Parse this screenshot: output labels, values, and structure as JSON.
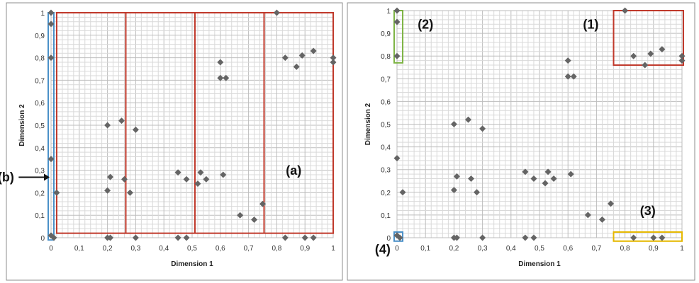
{
  "chart_data": [
    {
      "type": "scatter",
      "xlabel": "Dimension 1",
      "ylabel": "Dimension 2",
      "xlim": [
        0,
        1
      ],
      "ylim": [
        0,
        1
      ],
      "x_ticks": [
        "0",
        "0,1",
        "0,2",
        "0,3",
        "0,4",
        "0,5",
        "0,6",
        "0,7",
        "0,8",
        "0,9",
        "1"
      ],
      "y_ticks": [
        "0",
        "0,1",
        "0,2",
        "0,3",
        "0,4",
        "0,5",
        "0,6",
        "0,7",
        "0,8",
        "0,9",
        "1"
      ],
      "grid": true,
      "points": [
        {
          "x": 0,
          "y": 1
        },
        {
          "x": 0,
          "y": 0.95
        },
        {
          "x": 0,
          "y": 0.8
        },
        {
          "x": 0,
          "y": 0.35
        },
        {
          "x": 0,
          "y": 0.01
        },
        {
          "x": 0.01,
          "y": 0
        },
        {
          "x": 0.02,
          "y": 0.2
        },
        {
          "x": 0.2,
          "y": 0.5
        },
        {
          "x": 0.21,
          "y": 0.27
        },
        {
          "x": 0.2,
          "y": 0.21
        },
        {
          "x": 0.2,
          "y": 0
        },
        {
          "x": 0.21,
          "y": 0
        },
        {
          "x": 0.25,
          "y": 0.52
        },
        {
          "x": 0.26,
          "y": 0.26
        },
        {
          "x": 0.28,
          "y": 0.2
        },
        {
          "x": 0.3,
          "y": 0.48
        },
        {
          "x": 0.3,
          "y": 0
        },
        {
          "x": 0.45,
          "y": 0.29
        },
        {
          "x": 0.48,
          "y": 0.26
        },
        {
          "x": 0.45,
          "y": 0
        },
        {
          "x": 0.48,
          "y": 0
        },
        {
          "x": 0.52,
          "y": 0.24
        },
        {
          "x": 0.53,
          "y": 0.29
        },
        {
          "x": 0.55,
          "y": 0.26
        },
        {
          "x": 0.6,
          "y": 0.78
        },
        {
          "x": 0.6,
          "y": 0.71
        },
        {
          "x": 0.62,
          "y": 0.71
        },
        {
          "x": 0.61,
          "y": 0.28
        },
        {
          "x": 0.67,
          "y": 0.1
        },
        {
          "x": 0.72,
          "y": 0.08
        },
        {
          "x": 0.75,
          "y": 0.15
        },
        {
          "x": 0.8,
          "y": 1
        },
        {
          "x": 0.83,
          "y": 0.8
        },
        {
          "x": 0.87,
          "y": 0.76
        },
        {
          "x": 0.89,
          "y": 0.81
        },
        {
          "x": 0.93,
          "y": 0.83
        },
        {
          "x": 1,
          "y": 0.8
        },
        {
          "x": 1,
          "y": 0.78
        },
        {
          "x": 0.83,
          "y": 0
        },
        {
          "x": 0.9,
          "y": 0
        },
        {
          "x": 0.93,
          "y": 0
        }
      ],
      "regions": [
        {
          "name": "a",
          "color": "#c0392b",
          "x0": 0.02,
          "y0": 0.02,
          "x1": 1,
          "y1": 1
        },
        {
          "name": "a-split-1",
          "color": "#c0392b",
          "x0": 0.265,
          "y0": 0.02,
          "x1": 0.265,
          "y1": 1
        },
        {
          "name": "a-split-2",
          "color": "#c0392b",
          "x0": 0.51,
          "y0": 0.02,
          "x1": 0.51,
          "y1": 1
        },
        {
          "name": "a-split-3",
          "color": "#c0392b",
          "x0": 0.755,
          "y0": 0.02,
          "x1": 0.755,
          "y1": 1
        },
        {
          "name": "b",
          "color": "#4a90c8",
          "x0": -0.01,
          "y0": -0.01,
          "x1": 0.01,
          "y1": 1
        }
      ],
      "annotations": [
        {
          "text": "(a)",
          "x": 0.86,
          "y": 0.28
        },
        {
          "text": "(b)",
          "x": -0.16,
          "y": 0.25,
          "arrow": true
        }
      ]
    },
    {
      "type": "scatter",
      "xlabel": "Dimension 1",
      "ylabel": "Dimension 2",
      "xlim": [
        0,
        1
      ],
      "ylim": [
        0,
        1
      ],
      "x_ticks": [
        "0",
        "0,1",
        "0,2",
        "0,3",
        "0,4",
        "0,5",
        "0,6",
        "0,7",
        "0,8",
        "0,9",
        "1"
      ],
      "y_ticks": [
        "0",
        "0,1",
        "0,2",
        "0,3",
        "0,4",
        "0,5",
        "0,6",
        "0,7",
        "0,8",
        "0,9",
        "1"
      ],
      "grid": true,
      "points": [
        {
          "x": 0,
          "y": 1
        },
        {
          "x": 0,
          "y": 0.95
        },
        {
          "x": 0,
          "y": 0.8
        },
        {
          "x": 0,
          "y": 0.35
        },
        {
          "x": 0,
          "y": 0.01
        },
        {
          "x": 0.01,
          "y": 0
        },
        {
          "x": 0.02,
          "y": 0.2
        },
        {
          "x": 0.2,
          "y": 0.5
        },
        {
          "x": 0.21,
          "y": 0.27
        },
        {
          "x": 0.2,
          "y": 0.21
        },
        {
          "x": 0.2,
          "y": 0
        },
        {
          "x": 0.21,
          "y": 0
        },
        {
          "x": 0.25,
          "y": 0.52
        },
        {
          "x": 0.26,
          "y": 0.26
        },
        {
          "x": 0.28,
          "y": 0.2
        },
        {
          "x": 0.3,
          "y": 0.48
        },
        {
          "x": 0.3,
          "y": 0
        },
        {
          "x": 0.45,
          "y": 0.29
        },
        {
          "x": 0.48,
          "y": 0.26
        },
        {
          "x": 0.45,
          "y": 0
        },
        {
          "x": 0.48,
          "y": 0
        },
        {
          "x": 0.52,
          "y": 0.24
        },
        {
          "x": 0.53,
          "y": 0.29
        },
        {
          "x": 0.55,
          "y": 0.26
        },
        {
          "x": 0.6,
          "y": 0.78
        },
        {
          "x": 0.6,
          "y": 0.71
        },
        {
          "x": 0.62,
          "y": 0.71
        },
        {
          "x": 0.61,
          "y": 0.28
        },
        {
          "x": 0.67,
          "y": 0.1
        },
        {
          "x": 0.72,
          "y": 0.08
        },
        {
          "x": 0.75,
          "y": 0.15
        },
        {
          "x": 0.8,
          "y": 1
        },
        {
          "x": 0.83,
          "y": 0.8
        },
        {
          "x": 0.87,
          "y": 0.76
        },
        {
          "x": 0.89,
          "y": 0.81
        },
        {
          "x": 0.93,
          "y": 0.83
        },
        {
          "x": 1,
          "y": 0.8
        },
        {
          "x": 1,
          "y": 0.78
        },
        {
          "x": 0.83,
          "y": 0
        },
        {
          "x": 0.9,
          "y": 0
        },
        {
          "x": 0.93,
          "y": 0
        }
      ],
      "regions": [
        {
          "name": "1",
          "color": "#c0392b",
          "x0": 0.76,
          "y0": 0.76,
          "x1": 1.005,
          "y1": 1
        },
        {
          "name": "2",
          "color": "#7cb342",
          "x0": -0.01,
          "y0": 0.77,
          "x1": 0.02,
          "y1": 1
        },
        {
          "name": "3",
          "color": "#e6b800",
          "x0": 0.76,
          "y0": -0.015,
          "x1": 1,
          "y1": 0.025
        },
        {
          "name": "4",
          "color": "#4a90c8",
          "x0": -0.01,
          "y0": -0.015,
          "x1": 0.02,
          "y1": 0.025
        }
      ],
      "annotations": [
        {
          "text": "(1)",
          "x": 0.68,
          "y": 0.92
        },
        {
          "text": "(2)",
          "x": 0.1,
          "y": 0.92
        },
        {
          "text": "(3)",
          "x": 0.88,
          "y": 0.1
        },
        {
          "text": "(4)",
          "x": -0.05,
          "y": -0.07
        }
      ]
    }
  ],
  "colors": {
    "marker": "#646464",
    "grid_minor": "#d9d9d9",
    "grid_major": "#bdbdbd",
    "frame": "#8c8c8c"
  }
}
